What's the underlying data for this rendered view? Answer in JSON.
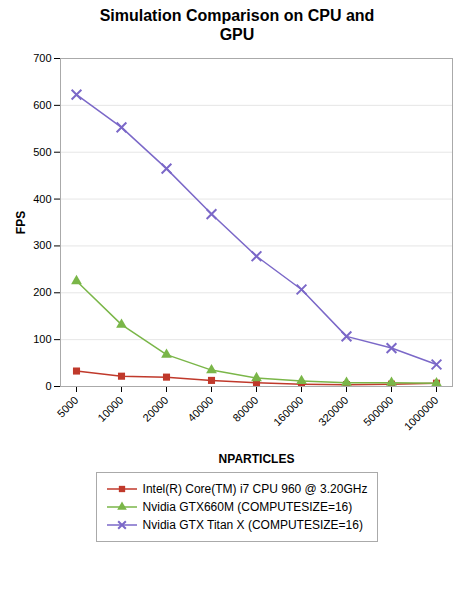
{
  "chart_data": {
    "type": "line",
    "title": "Simulation Comparison on CPU and\nGPU",
    "x_label": "NPARTICLES",
    "y_label": "FPS",
    "categories": [
      "5000",
      "10000",
      "20000",
      "40000",
      "80000",
      "160000",
      "320000",
      "500000",
      "1000000"
    ],
    "series": [
      {
        "name": "Intel(R) Core(TM) i7 CPU 960 @ 3.20GHz",
        "color": "#c0392b",
        "marker": "square",
        "values": [
          33,
          22,
          20,
          13,
          8,
          5,
          4,
          5,
          7
        ]
      },
      {
        "name": "Nvidia GTX660M (COMPUTESIZE=16)",
        "color": "#7ab648",
        "marker": "triangle",
        "values": [
          225,
          132,
          68,
          35,
          18,
          12,
          8,
          8,
          7
        ]
      },
      {
        "name": "Nvidia GTX Titan X (COMPUTESIZE=16)",
        "color": "#7b68c8",
        "marker": "x",
        "values": [
          623,
          553,
          465,
          368,
          278,
          207,
          107,
          82,
          47
        ]
      }
    ],
    "ylim": [
      0,
      700
    ],
    "yticks": [
      0,
      100,
      200,
      300,
      400,
      500,
      600,
      700
    ],
    "grid": true,
    "legend": "bottom"
  }
}
